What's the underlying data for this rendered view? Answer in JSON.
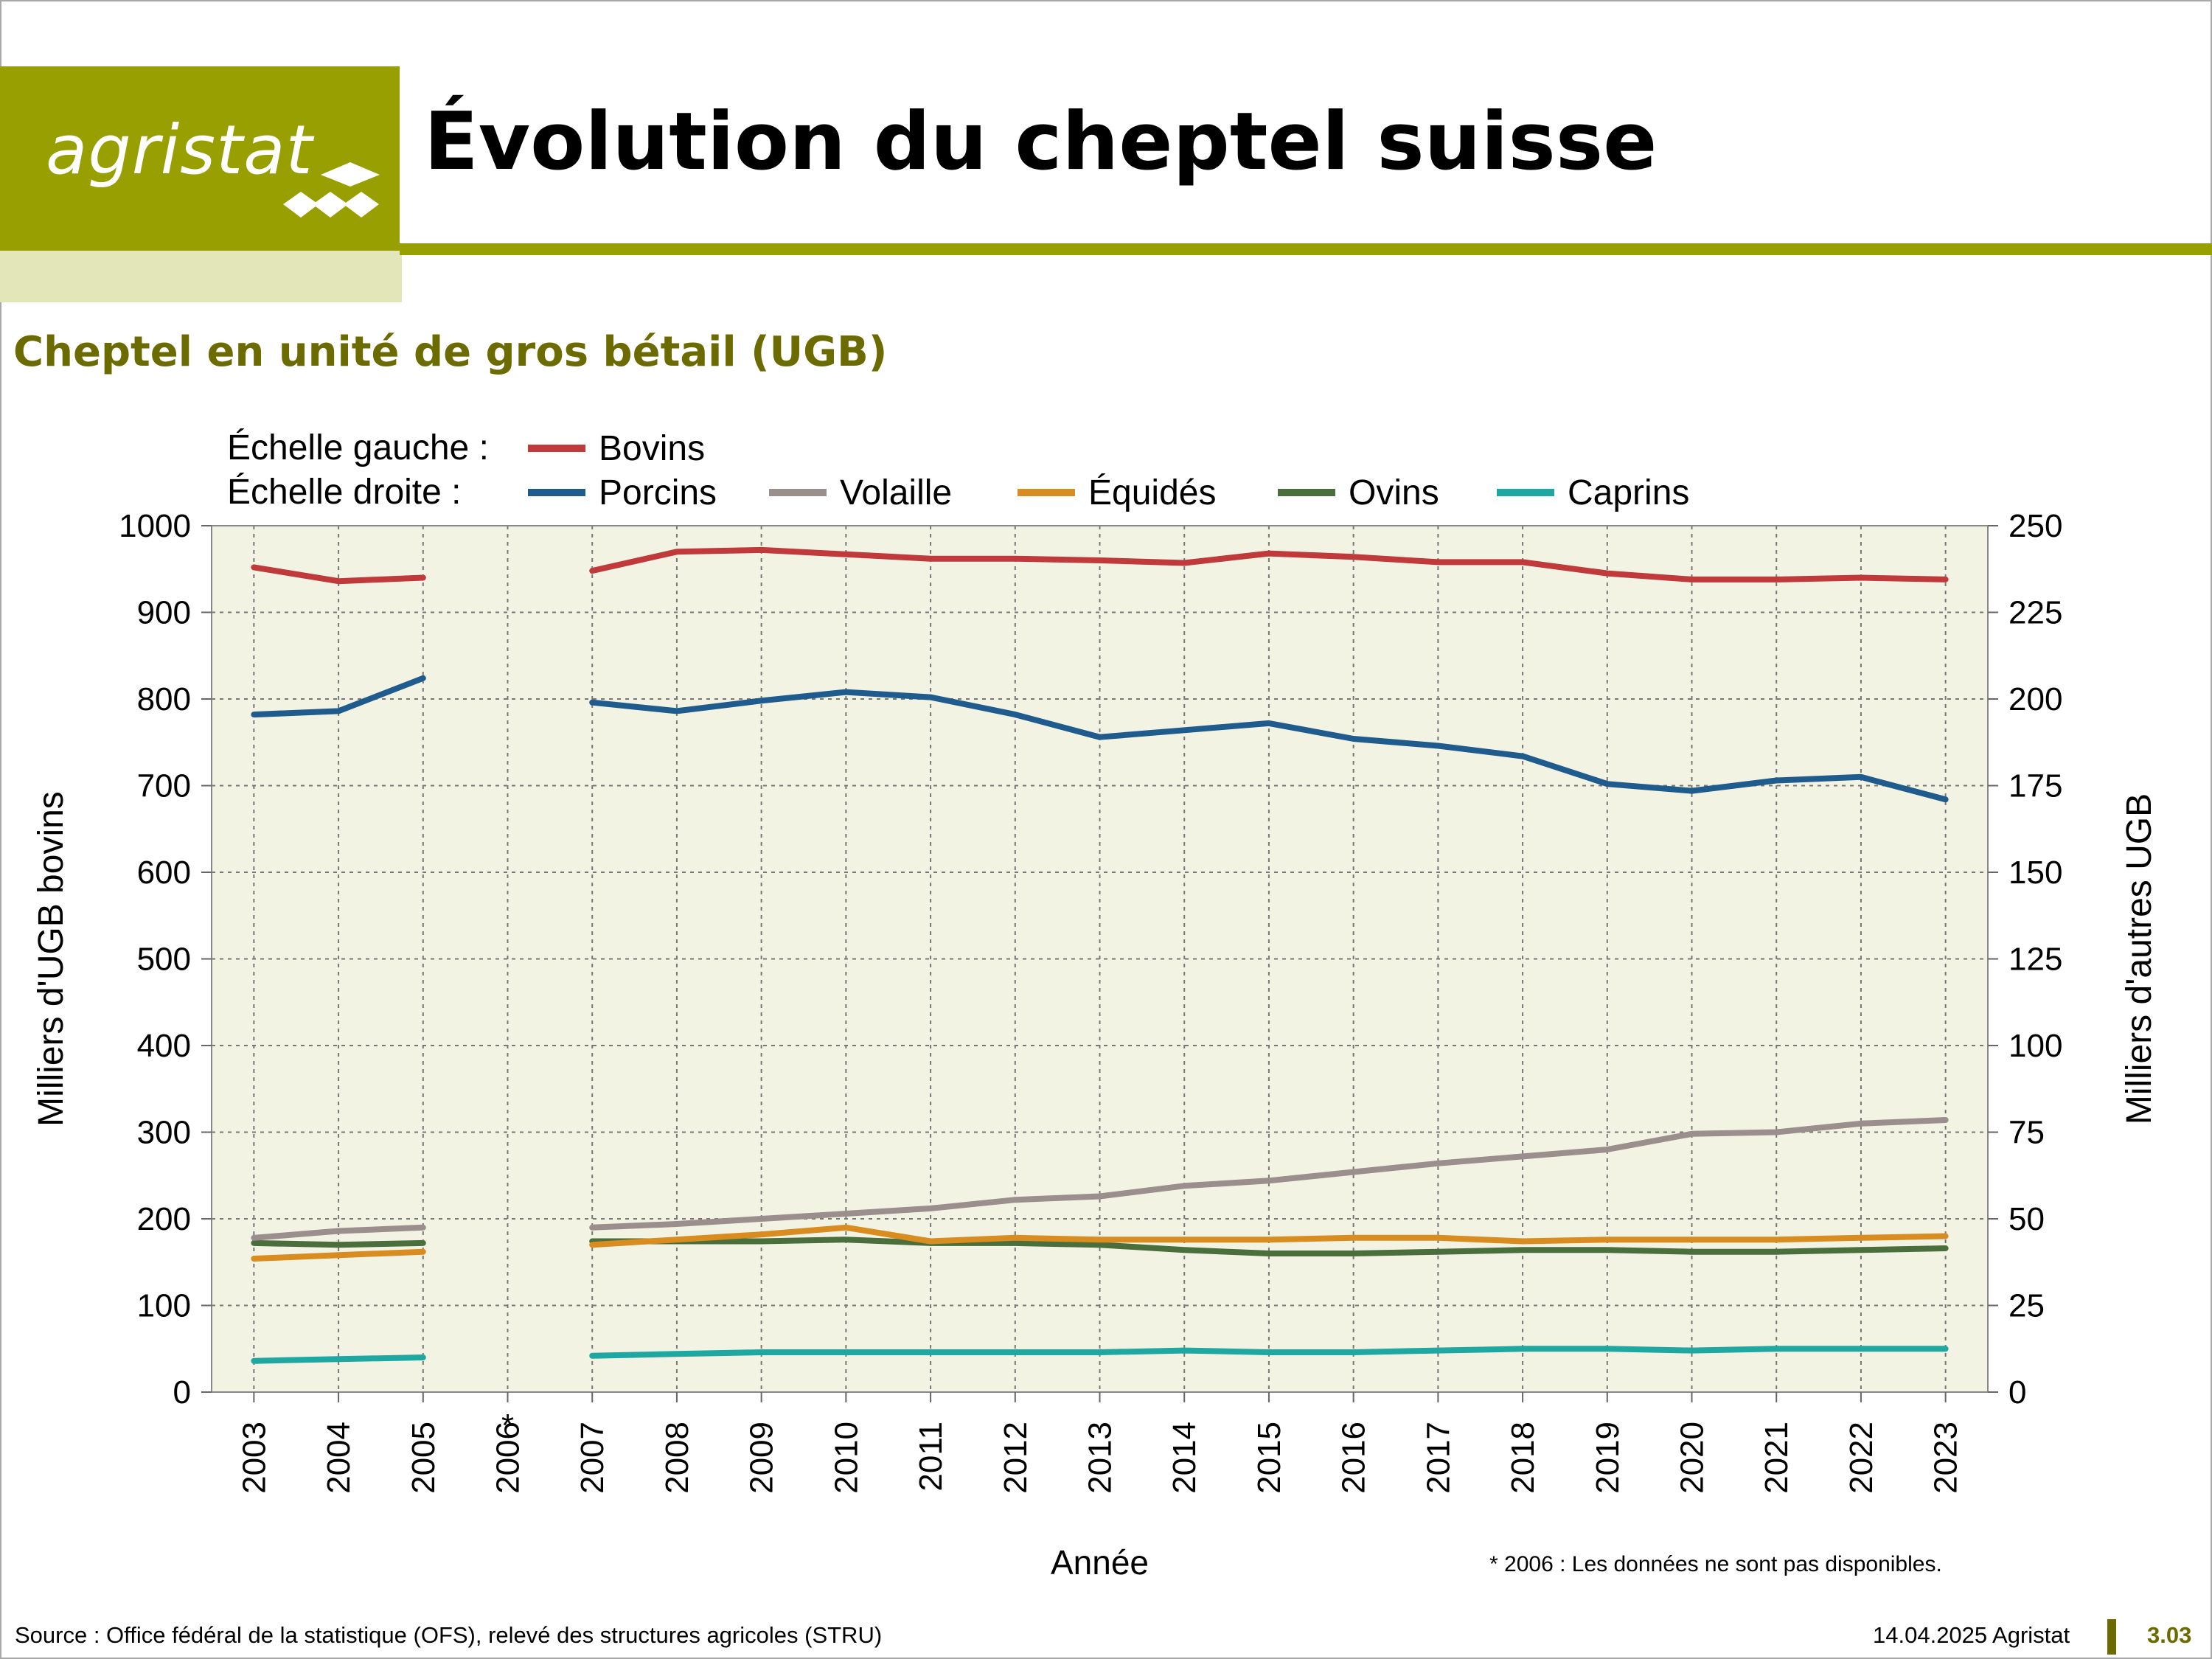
{
  "header": {
    "logo_text": "agristat",
    "title": "Évolution du cheptel suisse",
    "subtitle": "Cheptel en unité de gros bétail (UGB)"
  },
  "footer": {
    "source": "Source : Office fédéral de la statistique (OFS), relevé des structures agricoles (STRU)",
    "date_org": "14.04.2025 Agristat",
    "page": "3.03"
  },
  "footnote": "* 2006 : Les données ne sont pas disponibles.",
  "chart_data": {
    "type": "line",
    "xlabel": "Année",
    "ylabel_left": "Milliers d'UGB bovins",
    "ylabel_right": "Milliers d'autres UGB",
    "ylim_left": [
      0,
      1000
    ],
    "ylim_right": [
      0,
      250
    ],
    "yticks_left": [
      "0",
      "100",
      "200",
      "300",
      "400",
      "500",
      "600",
      "700",
      "800",
      "900",
      "1000"
    ],
    "yticks_right": [
      "0",
      "25",
      "50",
      "75",
      "100",
      "125",
      "150",
      "175",
      "200",
      "225",
      "250"
    ],
    "categories": [
      "2003",
      "2004",
      "2005",
      "2006",
      "2007",
      "2008",
      "2009",
      "2010",
      "2011",
      "2012",
      "2013",
      "2014",
      "2015",
      "2016",
      "2017",
      "2018",
      "2019",
      "2020",
      "2021",
      "2022",
      "2023"
    ],
    "missing_marker": "*",
    "legend": {
      "left_label": "Échelle gauche :",
      "right_label": "Échelle droite :"
    },
    "grid": true,
    "series": [
      {
        "name": "Bovins",
        "axis": "left",
        "color": "#c0393b",
        "values": [
          952,
          936,
          940,
          null,
          948,
          970,
          972,
          967,
          962,
          962,
          960,
          957,
          968,
          964,
          958,
          958,
          945,
          938,
          938,
          940,
          938
        ]
      },
      {
        "name": "Porcins",
        "axis": "right",
        "color": "#1f5b8c",
        "values": [
          195.5,
          196.5,
          206,
          null,
          199,
          196.5,
          199.5,
          202,
          200.5,
          195.5,
          189,
          191,
          193,
          188.5,
          186.5,
          183.5,
          175.5,
          173.5,
          176.5,
          177.5,
          171
        ]
      },
      {
        "name": "Volaille",
        "axis": "right",
        "color": "#9a8f8d",
        "values": [
          44.5,
          46.5,
          47.5,
          null,
          47.5,
          48.5,
          50,
          51.5,
          53,
          55.5,
          56.5,
          59.5,
          61,
          63.5,
          66,
          68,
          70,
          74.5,
          75,
          77.5,
          78.5
        ]
      },
      {
        "name": "Équidés",
        "axis": "right",
        "color": "#d98c1f",
        "values": [
          38.5,
          39.5,
          40.5,
          null,
          42.5,
          44,
          45.5,
          47.5,
          43.5,
          44.5,
          44,
          44,
          44,
          44.5,
          44.5,
          43.5,
          44,
          44,
          44,
          44.5,
          45
        ]
      },
      {
        "name": "Ovins",
        "axis": "right",
        "color": "#4a6e3c",
        "values": [
          43,
          42.5,
          43,
          null,
          43.5,
          43.5,
          43.5,
          44,
          43,
          43,
          42.5,
          41,
          40,
          40,
          40.5,
          41,
          41,
          40.5,
          40.5,
          41,
          41.5
        ]
      },
      {
        "name": "Caprins",
        "axis": "right",
        "color": "#1fa7a2",
        "values": [
          9,
          9.5,
          10,
          null,
          10.5,
          11,
          11.5,
          11.5,
          11.5,
          11.5,
          11.5,
          12,
          11.5,
          11.5,
          12,
          12.5,
          12.5,
          12,
          12.5,
          12.5,
          12.5
        ]
      }
    ]
  }
}
